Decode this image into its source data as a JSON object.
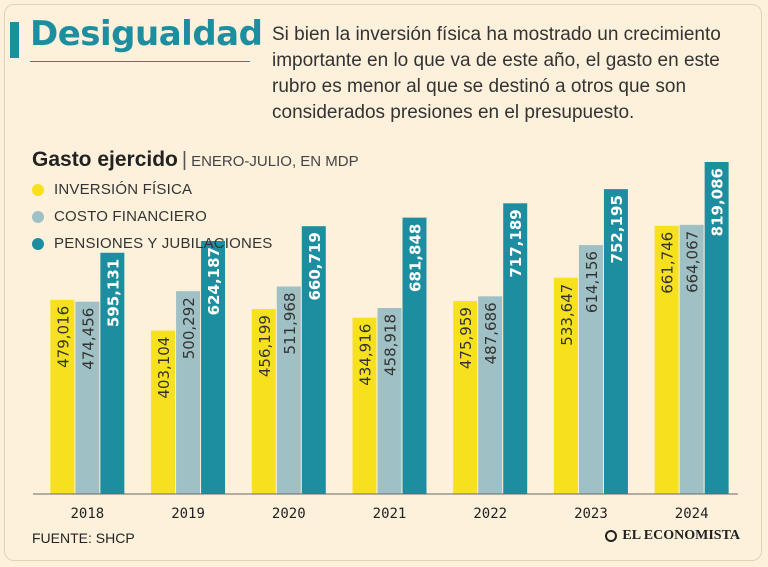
{
  "header": {
    "title": "Desigualdad",
    "intro": "Si bien la inversión física ha mostrado un crecimiento importante en lo que va de este año, el gasto en este rubro es menor al que se destinó a otros que son considerados  presiones en el presupuesto."
  },
  "footer": {
    "source": "FUENTE: SHCP",
    "logo": "EL ECONOMISTA"
  },
  "chart_data": {
    "type": "bar",
    "title": "Gasto ejercido",
    "subtitle": "ENERO-JULIO, EN MDP",
    "categories": [
      "2018",
      "2019",
      "2020",
      "2021",
      "2022",
      "2023",
      "2024"
    ],
    "series": [
      {
        "name": "INVERSIÓN FÍSICA",
        "color": "#f7e11f",
        "values": [
          479016,
          403104,
          456199,
          434916,
          475959,
          533647,
          661746
        ],
        "labels": [
          "479,016",
          "403,104",
          "456,199",
          "434,916",
          "475,959",
          "533,647",
          "661,746"
        ]
      },
      {
        "name": "COSTO FINANCIERO",
        "color": "#9fc0c4",
        "values": [
          474456,
          500292,
          511968,
          458918,
          487686,
          614156,
          664067
        ],
        "labels": [
          "474,456",
          "500,292",
          "511,968",
          "458,918",
          "487,686",
          "614,156",
          "664,067"
        ]
      },
      {
        "name": "PENSIONES Y JUBILACIONES",
        "color": "#1d8ea0",
        "values": [
          595131,
          624187,
          660719,
          681848,
          717189,
          752195,
          819086
        ],
        "labels": [
          "595,131",
          "624,187",
          "660,719",
          "681,848",
          "717,189",
          "752,195",
          "819,086"
        ]
      }
    ],
    "ylim": [
      0,
      819086
    ],
    "legend": "top-left",
    "grid": false
  }
}
